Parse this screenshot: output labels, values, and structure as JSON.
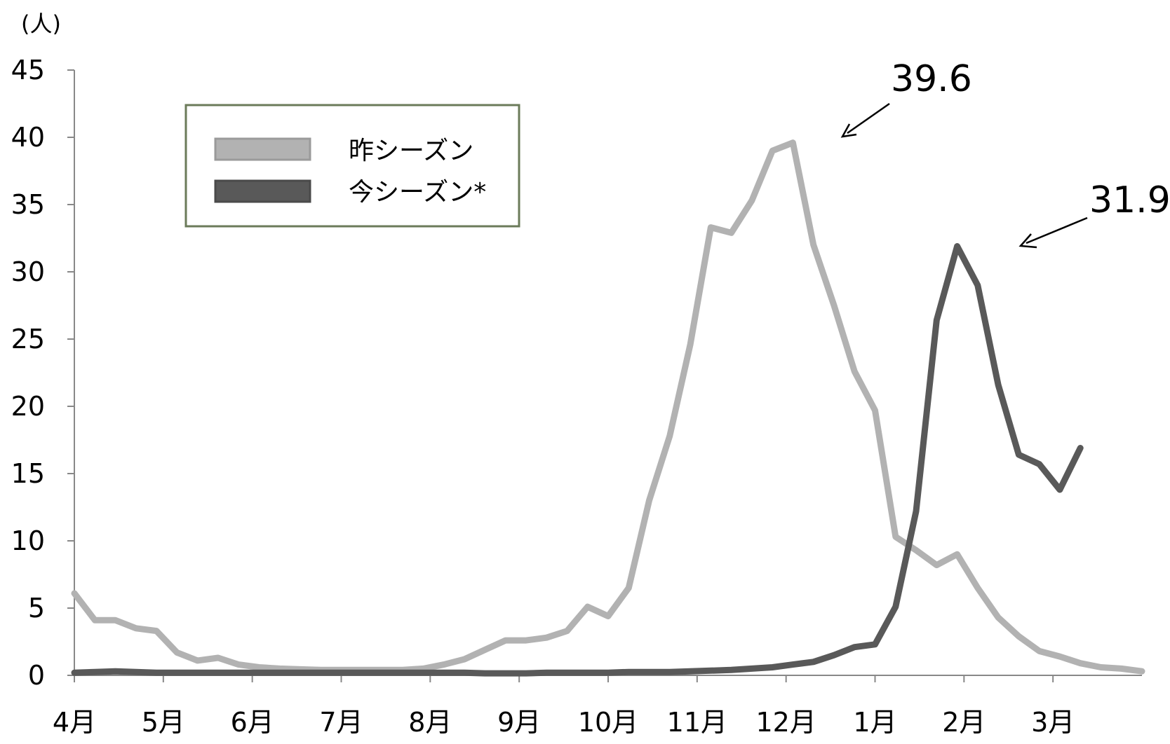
{
  "chart_data": {
    "type": "line",
    "unit_label": "(人)",
    "ylim": [
      0,
      45
    ],
    "y_ticks": [
      "0",
      "5",
      "10",
      "15",
      "20",
      "25",
      "30",
      "35",
      "40",
      "45"
    ],
    "x_ticks": [
      "4月",
      "5月",
      "6月",
      "7月",
      "8月",
      "9月",
      "10月",
      "11月",
      "12月",
      "1月",
      "2月",
      "3月"
    ],
    "grid": false,
    "legend_position": "top-left",
    "series": [
      {
        "name": "昨シーズン",
        "color": "#b2b2b2",
        "values": [
          6.1,
          4.1,
          4.1,
          3.5,
          3.3,
          1.7,
          1.1,
          1.3,
          0.8,
          0.6,
          0.5,
          0.45,
          0.4,
          0.4,
          0.4,
          0.4,
          0.4,
          0.5,
          0.8,
          1.2,
          1.9,
          2.6,
          2.6,
          2.8,
          3.3,
          5.1,
          4.4,
          6.5,
          13.0,
          17.8,
          24.6,
          33.3,
          32.9,
          35.3,
          39.0,
          39.6,
          32.0,
          27.5,
          22.6,
          19.7,
          10.3,
          9.3,
          8.2,
          9.0,
          6.5,
          4.3,
          2.9,
          1.8,
          1.4,
          0.9,
          0.6,
          0.5,
          0.3
        ]
      },
      {
        "name": "今シーズン*",
        "color": "#595959",
        "values": [
          0.2,
          0.25,
          0.3,
          0.25,
          0.2,
          0.2,
          0.2,
          0.2,
          0.2,
          0.2,
          0.2,
          0.2,
          0.2,
          0.2,
          0.2,
          0.2,
          0.2,
          0.2,
          0.2,
          0.2,
          0.15,
          0.15,
          0.15,
          0.2,
          0.2,
          0.2,
          0.2,
          0.25,
          0.25,
          0.25,
          0.3,
          0.35,
          0.4,
          0.5,
          0.6,
          0.8,
          1.0,
          1.5,
          2.1,
          2.3,
          5.1,
          12.2,
          26.4,
          31.9,
          29.0,
          21.6,
          16.4,
          15.7,
          13.8,
          16.9
        ]
      }
    ],
    "annotations": [
      {
        "text": "39.6",
        "series": 0,
        "point": 35
      },
      {
        "text": "31.9",
        "series": 1,
        "point": 43
      }
    ]
  }
}
